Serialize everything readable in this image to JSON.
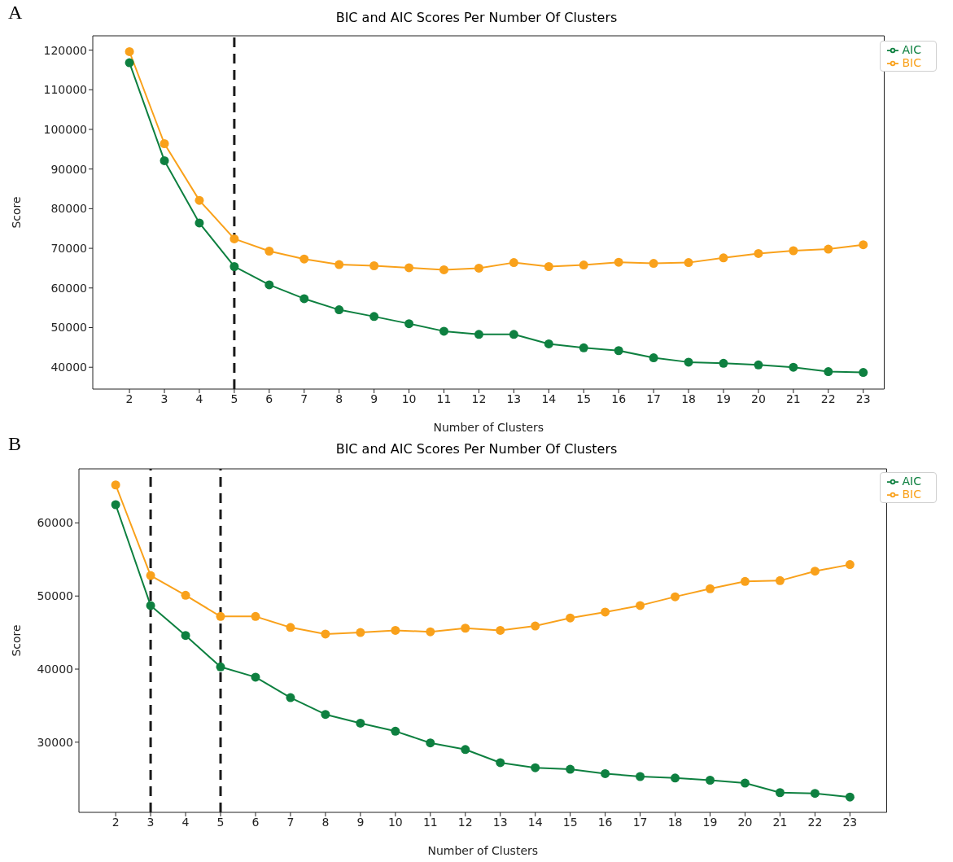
{
  "chart_data": [
    {
      "type": "line",
      "title": "BIC and AIC Scores Per Number Of Clusters",
      "xlabel": "Number of Clusters",
      "ylabel": "Score",
      "annotations": [
        "A"
      ],
      "x": [
        2,
        3,
        4,
        5,
        6,
        7,
        8,
        9,
        10,
        11,
        12,
        13,
        14,
        15,
        16,
        17,
        18,
        19,
        20,
        21,
        22,
        23
      ],
      "series": [
        {
          "name": "BIC",
          "color": "#f9a11b",
          "values": [
            119600,
            96400,
            82100,
            72400,
            69300,
            67300,
            65900,
            65600,
            65100,
            64600,
            65000,
            66400,
            65400,
            65800,
            66500,
            66200,
            66400,
            67600,
            68700,
            69400,
            69800,
            70900
          ]
        },
        {
          "name": "AIC",
          "color": "#0e8040",
          "values": [
            116800,
            92100,
            76400,
            65400,
            60800,
            57300,
            54500,
            52800,
            51000,
            49100,
            48300,
            48300,
            45900,
            44900,
            44200,
            42400,
            41300,
            41000,
            40600,
            40000,
            38900,
            38700
          ]
        }
      ],
      "xlim": [
        0.95,
        23.6
      ],
      "ylim": [
        34500,
        123600
      ],
      "xticks": [
        2,
        3,
        4,
        5,
        6,
        7,
        8,
        9,
        10,
        11,
        12,
        13,
        14,
        15,
        16,
        17,
        18,
        19,
        20,
        21,
        22,
        23
      ],
      "yticks": [
        40000,
        50000,
        60000,
        70000,
        80000,
        90000,
        100000,
        110000,
        120000
      ],
      "ref_lines": [
        {
          "axis": "x",
          "value": 5,
          "color": "#1a1a1a",
          "line_style": "dashed"
        }
      ],
      "legend": "top right",
      "marker": "circle",
      "line_style": "solid",
      "grid": false
    },
    {
      "type": "line",
      "title": "BIC and AIC Scores Per Number Of Clusters",
      "xlabel": "Number of Clusters",
      "ylabel": "Score",
      "annotations": [
        "B"
      ],
      "x": [
        2,
        3,
        4,
        5,
        6,
        7,
        8,
        9,
        10,
        11,
        12,
        13,
        14,
        15,
        16,
        17,
        18,
        19,
        20,
        21,
        22,
        23
      ],
      "series": [
        {
          "name": "BIC",
          "color": "#f9a11b",
          "values": [
            65200,
            52800,
            50100,
            47200,
            47200,
            45700,
            44800,
            45000,
            45300,
            45100,
            45600,
            45300,
            45900,
            47000,
            47800,
            48700,
            49900,
            51000,
            52000,
            52100,
            53400,
            54300
          ]
        },
        {
          "name": "AIC",
          "color": "#0e8040",
          "values": [
            62500,
            48700,
            44600,
            40300,
            38900,
            36100,
            33800,
            32600,
            31500,
            29900,
            29000,
            27200,
            26500,
            26300,
            25700,
            25300,
            25100,
            24800,
            24400,
            23100,
            23000,
            22500
          ]
        }
      ],
      "xlim": [
        0.95,
        24.05
      ],
      "ylim": [
        20400,
        67400
      ],
      "xticks": [
        2,
        3,
        4,
        5,
        6,
        7,
        8,
        9,
        10,
        11,
        12,
        13,
        14,
        15,
        16,
        17,
        18,
        19,
        20,
        21,
        22,
        23
      ],
      "yticks": [
        30000,
        40000,
        50000,
        60000
      ],
      "ref_lines": [
        {
          "axis": "x",
          "value": 3,
          "color": "#1a1a1a",
          "line_style": "dashed"
        },
        {
          "axis": "x",
          "value": 5,
          "color": "#1a1a1a",
          "line_style": "dashed"
        }
      ],
      "legend": "top right",
      "marker": "circle",
      "line_style": "solid",
      "grid": false
    }
  ]
}
